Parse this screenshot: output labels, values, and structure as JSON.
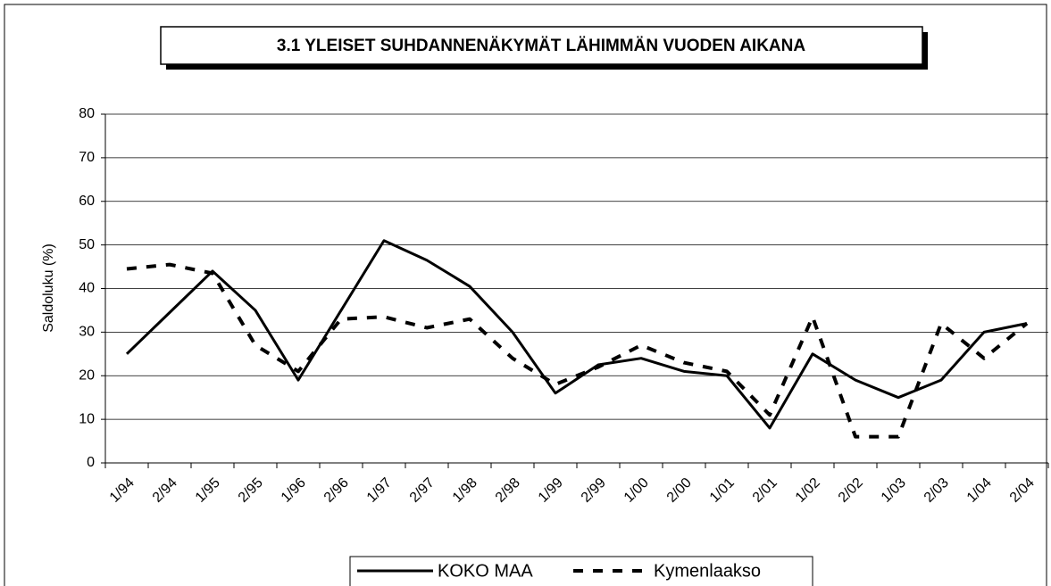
{
  "chart_data": {
    "type": "line",
    "title": "3.1 YLEISET SUHDANNENÄKYMÄT LÄHIMMÄN VUODEN AIKANA",
    "y_label": "Saldoluku (%)",
    "categories": [
      "1/94",
      "2/94",
      "1/95",
      "2/95",
      "1/96",
      "2/96",
      "1/97",
      "2/97",
      "1/98",
      "2/98",
      "1/99",
      "2/99",
      "1/00",
      "2/00",
      "1/01",
      "2/01",
      "1/02",
      "2/02",
      "1/03",
      "2/03",
      "1/04",
      "2/04"
    ],
    "series": [
      {
        "name": "KOKO MAA",
        "color": "#000000",
        "style": "solid",
        "values": [
          25,
          34.5,
          44,
          35,
          19,
          35,
          51,
          46.5,
          40.5,
          30,
          16,
          22.5,
          24,
          21,
          20,
          8,
          25,
          19,
          15,
          19,
          30,
          32
        ]
      },
      {
        "name": "Kymenlaakso",
        "color": "#000000",
        "style": "dashed",
        "values": [
          44.5,
          45.5,
          43.5,
          27,
          21,
          33,
          33.5,
          31,
          33,
          24,
          18,
          22,
          27,
          23,
          21,
          11,
          33.5,
          6,
          6,
          32,
          24,
          32
        ]
      }
    ],
    "ylim": [
      0,
      80
    ],
    "yticks": [
      0,
      10,
      20,
      30,
      40,
      50,
      60,
      70,
      80
    ],
    "grid": true,
    "legend": "bottom"
  }
}
